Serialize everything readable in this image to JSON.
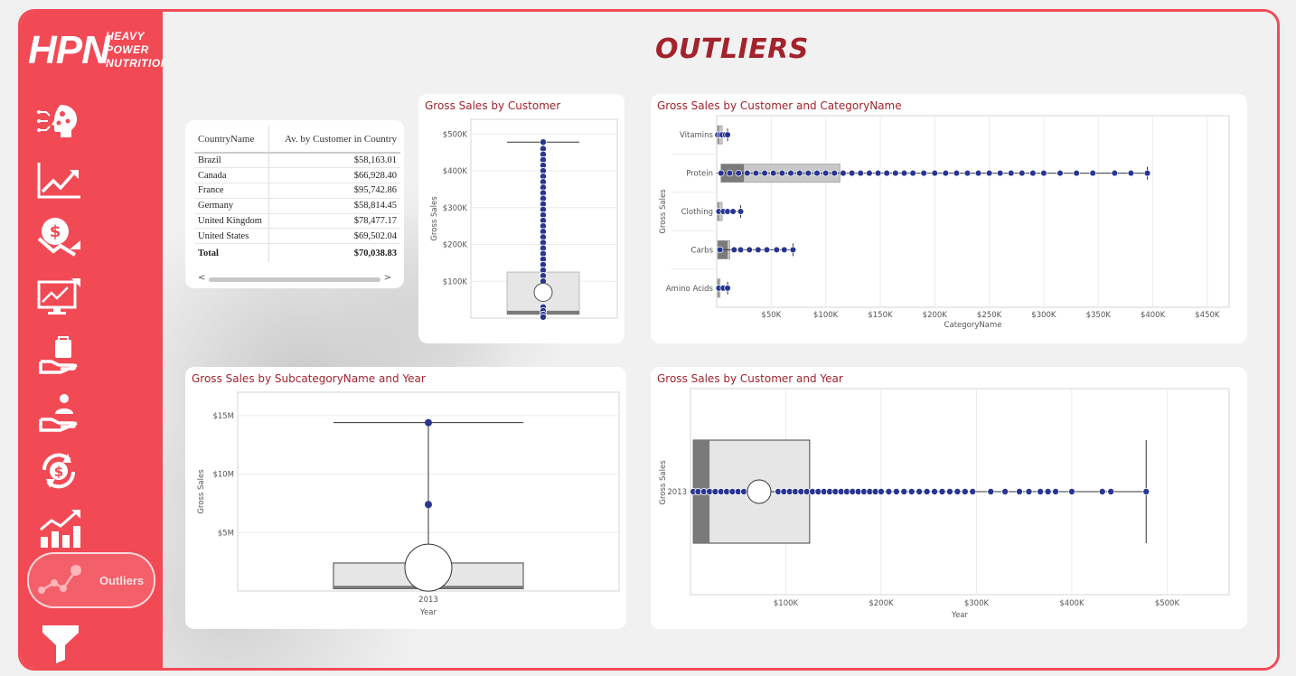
{
  "brand": {
    "mark": "HPN",
    "line1": "HEAVY",
    "line2": "POWER",
    "line3": "NUTRITION"
  },
  "page_title": "OUTLIERS",
  "nav": {
    "items": [
      {
        "icon": "brain-circuit-icon"
      },
      {
        "icon": "trend-up-chart-icon"
      },
      {
        "icon": "money-down-icon"
      },
      {
        "icon": "monitor-chart-icon"
      },
      {
        "icon": "hand-bag-icon"
      },
      {
        "icon": "hand-person-icon"
      },
      {
        "icon": "dollar-cycle-icon"
      },
      {
        "icon": "bar-growth-icon"
      },
      {
        "icon": "scatter-line-icon",
        "label": "Outliers",
        "active": true
      },
      {
        "icon": "filter-icon"
      }
    ]
  },
  "country_table": {
    "headers": [
      "CountryName",
      "Av. by Customer in Country"
    ],
    "rows": [
      [
        "Brazil",
        "$58,163.01"
      ],
      [
        "Canada",
        "$66,928.40"
      ],
      [
        "France",
        "$95,742.86"
      ],
      [
        "Germany",
        "$58,814.45"
      ],
      [
        "United Kingdom",
        "$78,477.17"
      ],
      [
        "United States",
        "$69,502.04"
      ]
    ],
    "total": [
      "Total",
      "$70,038.83"
    ],
    "scroll_left": "<",
    "scroll_right": ">"
  },
  "chart_data": [
    {
      "type": "boxplot",
      "title": "Gross Sales by Customer",
      "ylabel": "Gross Sales",
      "ylim": [
        0,
        540000
      ],
      "yticks": [
        "$100K",
        "$200K",
        "$300K",
        "$400K",
        "$500K"
      ],
      "ytick_values": [
        100000,
        200000,
        300000,
        400000,
        500000
      ],
      "box": {
        "min": 0,
        "q1": 10000,
        "median": 20000,
        "q3": 125000,
        "max": 478000,
        "mean": 70000
      },
      "points": [
        478000,
        460000,
        445000,
        430000,
        415000,
        400000,
        385000,
        370000,
        355000,
        340000,
        325000,
        310000,
        295000,
        280000,
        265000,
        250000,
        235000,
        220000,
        205000,
        190000,
        175000,
        160000,
        145000,
        130000,
        115000,
        100000,
        85000,
        30000,
        20000,
        10000,
        3000
      ]
    },
    {
      "type": "boxplot-horizontal",
      "title": "Gross Sales by Customer and CategoryName",
      "xlabel": "CategoryName",
      "ylabel": "Gross Sales",
      "xlim": [
        0,
        470000
      ],
      "xticks": [
        "$50K",
        "$100K",
        "$150K",
        "$200K",
        "$250K",
        "$300K",
        "$350K",
        "$400K",
        "$450K"
      ],
      "xtick_values": [
        50000,
        100000,
        150000,
        200000,
        250000,
        300000,
        350000,
        400000,
        450000
      ],
      "categories": [
        "Vitamins",
        "Protein",
        "Clothing",
        "Carbs",
        "Amino Acids"
      ],
      "boxes": [
        {
          "min": 0,
          "q1": 1000,
          "median": 2000,
          "q3": 5000,
          "max": 10000,
          "points": [
            1000,
            3000,
            5000,
            8000,
            10000
          ]
        },
        {
          "min": 0,
          "q1": 4000,
          "median": 25000,
          "q3": 113000,
          "max": 395000,
          "points": [
            4000,
            12000,
            20000,
            28000,
            36000,
            44000,
            52000,
            60000,
            68000,
            76000,
            84000,
            92000,
            100000,
            108000,
            116000,
            124000,
            132000,
            140000,
            148000,
            156000,
            164000,
            172000,
            180000,
            190000,
            200000,
            210000,
            220000,
            230000,
            240000,
            250000,
            260000,
            270000,
            280000,
            290000,
            300000,
            315000,
            330000,
            345000,
            365000,
            380000,
            395000
          ]
        },
        {
          "min": 0,
          "q1": 1000,
          "median": 2000,
          "q3": 5000,
          "max": 22000,
          "points": [
            2000,
            6000,
            10000,
            15000,
            22000
          ]
        },
        {
          "min": 0,
          "q1": 1000,
          "median": 10000,
          "q3": 12000,
          "max": 70000,
          "points": [
            3000,
            16000,
            22000,
            30000,
            38000,
            46000,
            55000,
            62000,
            70000
          ]
        },
        {
          "min": 0,
          "q1": 1000,
          "median": 2000,
          "q3": 3000,
          "max": 10000,
          "points": [
            2000,
            6000,
            10000
          ]
        }
      ]
    },
    {
      "type": "boxplot",
      "title": "Gross Sales by SubcategoryName and Year",
      "xlabel": "Year",
      "ylabel": "Gross Sales",
      "categories": [
        "2013"
      ],
      "ylim": [
        0,
        17000000
      ],
      "yticks": [
        "$5M",
        "$10M",
        "$15M"
      ],
      "ytick_values": [
        5000000,
        10000000,
        15000000
      ],
      "box": {
        "min": 0,
        "q1": 200000,
        "median": 450000,
        "q3": 2400000,
        "max": 14400000,
        "mean": 2000000
      },
      "points": [
        14400000,
        7400000,
        2000000
      ]
    },
    {
      "type": "boxplot-horizontal",
      "title": "Gross Sales by Customer and Year",
      "xlabel": "Year",
      "ylabel": "Gross Sales",
      "categories": [
        "2013"
      ],
      "xlim": [
        0,
        565000
      ],
      "xticks": [
        "$100K",
        "$200K",
        "$300K",
        "$400K",
        "$500K"
      ],
      "xtick_values": [
        100000,
        200000,
        300000,
        400000,
        500000
      ],
      "box": {
        "min": 0,
        "q1": 3000,
        "median": 20000,
        "q3": 125000,
        "max": 478000,
        "mean": 72000
      },
      "points": [
        3000,
        8000,
        14000,
        20000,
        26000,
        32000,
        38000,
        44000,
        50000,
        56000,
        62000,
        92000,
        98000,
        104000,
        110000,
        116000,
        122000,
        128000,
        134000,
        140000,
        146000,
        152000,
        158000,
        164000,
        170000,
        176000,
        182000,
        188000,
        194000,
        200000,
        208000,
        216000,
        224000,
        232000,
        240000,
        248000,
        256000,
        264000,
        272000,
        280000,
        288000,
        296000,
        315000,
        330000,
        345000,
        355000,
        367000,
        375000,
        383000,
        400000,
        432000,
        441000,
        478000
      ]
    }
  ]
}
